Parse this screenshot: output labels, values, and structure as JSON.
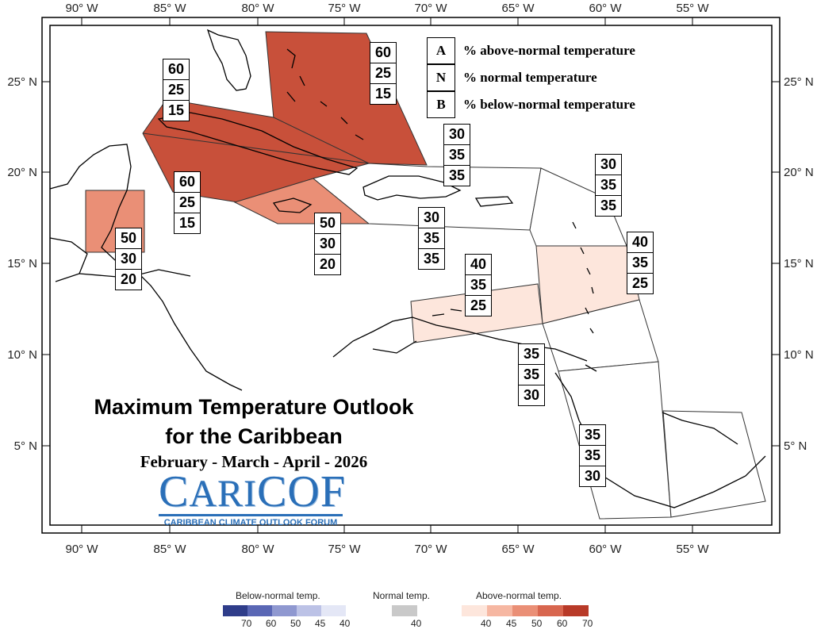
{
  "axes": {
    "top_labels": [
      "90° W",
      "85° W",
      "80° W",
      "75° W",
      "70° W",
      "65° W",
      "60° W",
      "55° W"
    ],
    "bottom_labels": [
      "90° W",
      "85° W",
      "80° W",
      "75° W",
      "70° W",
      "65° W",
      "60° W",
      "55° W"
    ],
    "left_labels": [
      "25° N",
      "20° N",
      "15° N",
      "10° N",
      "5° N"
    ],
    "right_labels": [
      "25° N",
      "20° N",
      "15° N",
      "10° N",
      "5° N"
    ]
  },
  "key": {
    "rows": [
      {
        "letter": "A",
        "text": "% above-normal temperature"
      },
      {
        "letter": "N",
        "text": "% normal temperature"
      },
      {
        "letter": "B",
        "text": "% below-normal temperature"
      }
    ]
  },
  "title": {
    "line1": "Maximum Temperature Outlook",
    "line2": "for the Caribbean",
    "period": "February - March - April - 2026"
  },
  "logo": {
    "word_first": "C",
    "word_mid": "ARI",
    "word_last": "COF",
    "tagline": "CARIBBEAN CLIMATE OUTLOOK FORUM"
  },
  "regions": [
    {
      "name": "bahamas",
      "A": "60",
      "N": "25",
      "B": "15",
      "fill": "#c8503a"
    },
    {
      "name": "cuba-west",
      "A": "60",
      "N": "25",
      "B": "15",
      "fill": "#c8503a"
    },
    {
      "name": "cuba-east",
      "A": "60",
      "N": "25",
      "B": "15",
      "fill": "#c8503a"
    },
    {
      "name": "belize",
      "A": "50",
      "N": "30",
      "B": "20",
      "fill": "#ea8f76"
    },
    {
      "name": "jamaica",
      "A": "50",
      "N": "30",
      "B": "20",
      "fill": "#ea8f76"
    },
    {
      "name": "turks-caicos",
      "A": "30",
      "N": "35",
      "B": "35",
      "fill": "#ffffff"
    },
    {
      "name": "hispaniola",
      "A": "30",
      "N": "35",
      "B": "35",
      "fill": "#ffffff"
    },
    {
      "name": "leeward-islands",
      "A": "30",
      "N": "35",
      "B": "35",
      "fill": "#ffffff"
    },
    {
      "name": "windward-islands",
      "A": "40",
      "N": "35",
      "B": "25",
      "fill": "#fde6dc"
    },
    {
      "name": "abc-islands",
      "A": "40",
      "N": "35",
      "B": "25",
      "fill": "#fde6dc"
    },
    {
      "name": "trinidad-tobago",
      "A": "35",
      "N": "35",
      "B": "30",
      "fill": "#ffffff"
    },
    {
      "name": "guianas",
      "A": "35",
      "N": "35",
      "B": "30",
      "fill": "#ffffff"
    }
  ],
  "legend": {
    "below_title": "Below-normal temp.",
    "normal_title": "Normal temp.",
    "above_title": "Above-normal temp.",
    "below": [
      {
        "color": "#2f3d8a",
        "label": "70"
      },
      {
        "color": "#5a67b5",
        "label": "60"
      },
      {
        "color": "#8f98d0",
        "label": "50"
      },
      {
        "color": "#bcc2e6",
        "label": "45"
      },
      {
        "color": "#e4e7f6",
        "label": "40"
      }
    ],
    "normal": [
      {
        "color": "#c9c9c9",
        "label": "40"
      }
    ],
    "above": [
      {
        "color": "#fde6dc",
        "label": "40"
      },
      {
        "color": "#f6b7a2",
        "label": "45"
      },
      {
        "color": "#ea8f76",
        "label": "50"
      },
      {
        "color": "#d8664f",
        "label": "60"
      },
      {
        "color": "#b83a28",
        "label": "70"
      }
    ]
  }
}
